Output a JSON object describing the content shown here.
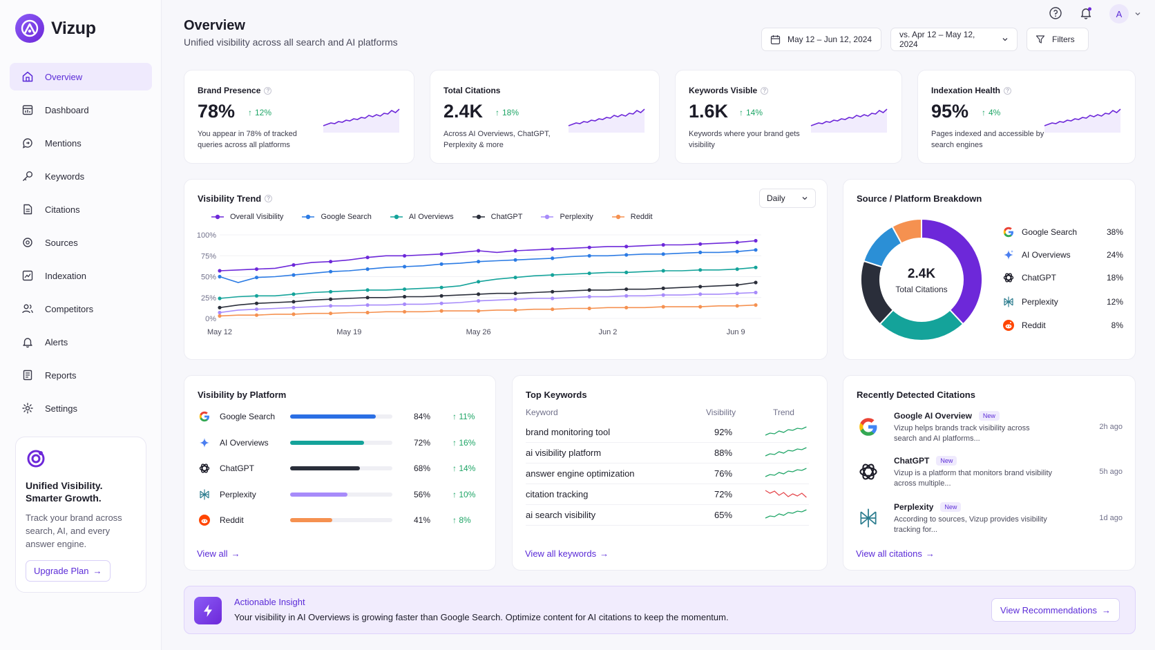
{
  "app": {
    "name": "Vizup"
  },
  "sidebar": {
    "items": [
      {
        "label": "Overview",
        "icon": "home-icon"
      },
      {
        "label": "Dashboard",
        "icon": "dashboard-icon"
      },
      {
        "label": "Mentions",
        "icon": "mentions-icon"
      },
      {
        "label": "Keywords",
        "icon": "key-icon"
      },
      {
        "label": "Citations",
        "icon": "document-icon"
      },
      {
        "label": "Sources",
        "icon": "sources-icon"
      },
      {
        "label": "Indexation",
        "icon": "indexation-icon"
      },
      {
        "label": "Competitors",
        "icon": "users-icon"
      },
      {
        "label": "Alerts",
        "icon": "bell-icon"
      },
      {
        "label": "Reports",
        "icon": "report-icon"
      },
      {
        "label": "Settings",
        "icon": "gear-icon"
      }
    ],
    "promo": {
      "title": "Unified Visibility. Smarter Growth.",
      "text": "Track your brand across search, AI, and every answer engine.",
      "button": "Upgrade Plan"
    }
  },
  "header": {
    "title": "Overview",
    "subtitle": "Unified visibility across all search and AI platforms",
    "date_range": "May 12 – Jun 12, 2024",
    "compare_range": "vs. Apr 12 – May 12, 2024",
    "filters": "Filters",
    "avatar": "A"
  },
  "kpis": [
    {
      "label": "Brand Presence",
      "value": "78%",
      "delta": "12%",
      "desc": "You appear in 78% of tracked queries across all platforms"
    },
    {
      "label": "Total Citations",
      "value": "2.4K",
      "delta": "18%",
      "desc": "Across AI Overviews, ChatGPT, Perplexity & more"
    },
    {
      "label": "Keywords Visible",
      "value": "1.6K",
      "delta": "14%",
      "desc": "Keywords where your brand gets visibility"
    },
    {
      "label": "Indexation Health",
      "value": "95%",
      "delta": "4%",
      "desc": "Pages indexed and accessible by search engines"
    }
  ],
  "trend": {
    "title": "Visibility Trend",
    "granularity": "Daily"
  },
  "chart_data": {
    "type": "line",
    "title": "Visibility Trend",
    "x_ticks": [
      "May 12",
      "May 19",
      "May 26",
      "Jun 2",
      "Jun 9"
    ],
    "y_ticks": [
      "100%",
      "75%",
      "50%",
      "25%",
      "0%"
    ],
    "ylim": [
      0,
      100
    ],
    "grid": true,
    "legend_position": "top",
    "series": [
      {
        "name": "Overall Visibility",
        "color": "#6d28d9",
        "values": [
          57,
          58,
          59,
          60,
          64,
          67,
          68,
          70,
          73,
          75,
          75,
          76,
          77,
          79,
          81,
          79,
          81,
          82,
          83,
          84,
          85,
          86,
          86,
          87,
          88,
          88,
          89,
          90,
          91,
          93
        ]
      },
      {
        "name": "Google Search",
        "color": "#2b7be4",
        "values": [
          50,
          43,
          49,
          50,
          52,
          54,
          56,
          57,
          59,
          61,
          62,
          63,
          65,
          66,
          68,
          69,
          70,
          71,
          72,
          74,
          75,
          75,
          76,
          77,
          77,
          78,
          79,
          79,
          80,
          82
        ]
      },
      {
        "name": "AI Overviews",
        "color": "#14a39a",
        "values": [
          24,
          26,
          27,
          27,
          29,
          31,
          32,
          33,
          34,
          34,
          35,
          36,
          37,
          39,
          44,
          47,
          49,
          51,
          52,
          53,
          54,
          55,
          55,
          56,
          57,
          57,
          58,
          58,
          59,
          61
        ]
      },
      {
        "name": "ChatGPT",
        "color": "#2a2e3a",
        "values": [
          13,
          16,
          18,
          19,
          20,
          22,
          23,
          24,
          25,
          25,
          26,
          26,
          27,
          28,
          29,
          30,
          30,
          31,
          32,
          33,
          34,
          34,
          35,
          35,
          36,
          37,
          38,
          39,
          40,
          43
        ]
      },
      {
        "name": "Perplexity",
        "color": "#a78bfa",
        "values": [
          7,
          10,
          11,
          12,
          13,
          14,
          15,
          15,
          16,
          16,
          17,
          17,
          18,
          19,
          21,
          22,
          23,
          24,
          24,
          25,
          26,
          26,
          27,
          27,
          28,
          28,
          29,
          29,
          30,
          31
        ]
      },
      {
        "name": "Reddit",
        "color": "#f59150",
        "values": [
          3,
          4,
          4,
          5,
          5,
          6,
          6,
          7,
          7,
          8,
          8,
          8,
          9,
          9,
          9,
          10,
          10,
          11,
          11,
          12,
          12,
          13,
          13,
          13,
          14,
          14,
          14,
          15,
          15,
          16
        ]
      }
    ]
  },
  "breakdown": {
    "title": "Source / Platform Breakdown",
    "center_value": "2.4K",
    "center_label": "Total Citations",
    "items": [
      {
        "name": "Google Search",
        "pct": "38%",
        "value": 38,
        "color": "#6d28d9",
        "icon": "google-icon"
      },
      {
        "name": "AI Overviews",
        "pct": "24%",
        "value": 24,
        "color": "#14a39a",
        "icon": "sparkle-icon"
      },
      {
        "name": "ChatGPT",
        "pct": "18%",
        "value": 18,
        "color": "#2a2e3a",
        "icon": "chatgpt-icon"
      },
      {
        "name": "Perplexity",
        "pct": "12%",
        "value": 12,
        "color": "#2b8fd6",
        "icon": "perplexity-icon"
      },
      {
        "name": "Reddit",
        "pct": "8%",
        "value": 8,
        "color": "#f59150",
        "icon": "reddit-icon"
      }
    ]
  },
  "by_platform": {
    "title": "Visibility by Platform",
    "rows": [
      {
        "name": "Google Search",
        "pct": "84%",
        "value": 0.84,
        "delta": "11%",
        "color": "#2b6fe4",
        "icon": "google-icon"
      },
      {
        "name": "AI Overviews",
        "pct": "72%",
        "value": 0.72,
        "delta": "16%",
        "color": "#14a39a",
        "icon": "sparkle-icon"
      },
      {
        "name": "ChatGPT",
        "pct": "68%",
        "value": 0.68,
        "delta": "14%",
        "color": "#2a2e3a",
        "icon": "chatgpt-icon"
      },
      {
        "name": "Perplexity",
        "pct": "56%",
        "value": 0.56,
        "delta": "10%",
        "color": "#a78bfa",
        "icon": "perplexity-icon"
      },
      {
        "name": "Reddit",
        "pct": "41%",
        "value": 0.41,
        "delta": "8%",
        "color": "#f59150",
        "icon": "reddit-icon"
      }
    ],
    "link": "View all"
  },
  "keywords": {
    "title": "Top Keywords",
    "col_keyword": "Keyword",
    "col_visibility": "Visibility",
    "col_trend": "Trend",
    "rows": [
      {
        "keyword": "brand monitoring tool",
        "pct": "92%",
        "trend_color": "#1ea566"
      },
      {
        "keyword": "ai visibility platform",
        "pct": "88%",
        "trend_color": "#1ea566"
      },
      {
        "keyword": "answer engine optimization",
        "pct": "76%",
        "trend_color": "#1ea566"
      },
      {
        "keyword": "citation tracking",
        "pct": "72%",
        "trend_color": "#e5484d"
      },
      {
        "keyword": "ai search visibility",
        "pct": "65%",
        "trend_color": "#1ea566"
      }
    ],
    "link": "View all keywords"
  },
  "citations": {
    "title": "Recently Detected Citations",
    "items": [
      {
        "source": "Google AI Overview",
        "badge": "New",
        "text": "Vizup helps brands track visibility across search and AI platforms...",
        "time": "2h ago",
        "icon": "google-icon"
      },
      {
        "source": "ChatGPT",
        "badge": "New",
        "text": "Vizup is a platform that monitors brand visibility across multiple...",
        "time": "5h ago",
        "icon": "chatgpt-icon"
      },
      {
        "source": "Perplexity",
        "badge": "New",
        "text": "According to sources, Vizup provides visibility tracking for...",
        "time": "1d ago",
        "icon": "perplexity-icon"
      }
    ],
    "link": "View all citations"
  },
  "insight": {
    "title": "Actionable Insight",
    "text": "Your visibility in AI Overviews is growing faster than Google Search. Optimize content for AI citations to keep the momentum.",
    "button": "View Recommendations"
  },
  "colors": {
    "accent": "#5b2bd7",
    "positive": "#1ea566",
    "negative": "#e5484d"
  }
}
